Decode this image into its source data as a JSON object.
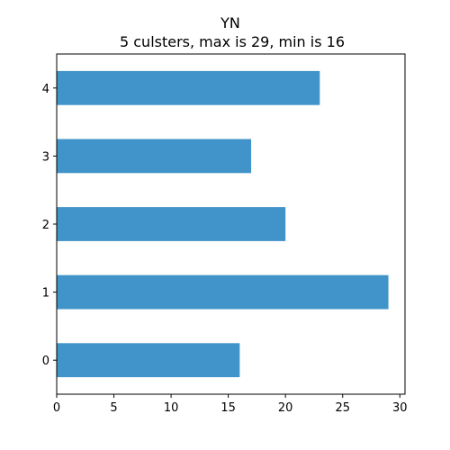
{
  "chart_data": {
    "type": "bar",
    "orientation": "horizontal",
    "title": "YN",
    "subtitle": "5 culsters, max is 29, min is 16",
    "categories": [
      "0",
      "1",
      "2",
      "3",
      "4"
    ],
    "values": [
      16,
      29,
      20,
      17,
      23
    ],
    "xlim": [
      0,
      30.45
    ],
    "x_ticks": [
      "0",
      "5",
      "10",
      "15",
      "20",
      "25",
      "30"
    ],
    "xlabel": "",
    "ylabel": "",
    "grid": false,
    "legend": "none",
    "bar_color": "#4094c9"
  }
}
